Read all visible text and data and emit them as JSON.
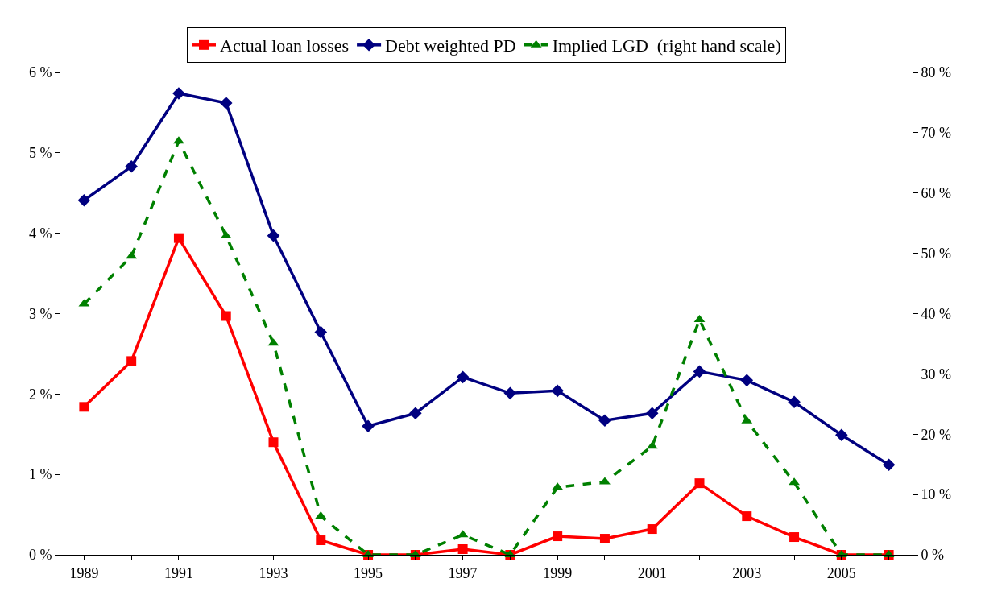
{
  "chart_data": {
    "type": "line",
    "x": [
      1989,
      1990,
      1991,
      1992,
      1993,
      1994,
      1995,
      1996,
      1997,
      1998,
      1999,
      2000,
      2001,
      2002,
      2003,
      2004,
      2005,
      2006
    ],
    "series": [
      {
        "name": "Actual loan losses",
        "color": "#ff0000",
        "marker": "square",
        "line_style": "solid",
        "values": [
          1.84,
          2.41,
          3.94,
          2.97,
          1.4,
          0.18,
          0,
          0,
          0.07,
          0,
          0.23,
          0.2,
          0.32,
          0.89,
          0.48,
          0.22,
          0,
          0
        ]
      },
      {
        "name": "Debt weighted PD",
        "color": "#000080",
        "marker": "diamond",
        "line_style": "solid",
        "values": [
          4.41,
          4.83,
          5.74,
          5.62,
          3.97,
          2.77,
          1.6,
          1.76,
          2.21,
          2.01,
          2.04,
          1.67,
          1.76,
          2.28,
          2.17,
          1.9,
          1.49,
          1.12
        ]
      },
      {
        "name": "Implied LGD  (right hand scale)",
        "color": "#008000",
        "marker": "triangle",
        "line_style": "dashed",
        "axis": "y2",
        "values": [
          41.6,
          49.5,
          68.6,
          52.9,
          35.1,
          6.4,
          0,
          0,
          3.3,
          0,
          11.2,
          12.1,
          18.0,
          39.0,
          22.2,
          12.0,
          0,
          0
        ]
      }
    ],
    "xlim": [
      1988.5,
      2006.5
    ],
    "xticks": [
      1989,
      {
        "value": 1990,
        "label": null
      },
      1991,
      {
        "value": 1992,
        "label": null
      },
      1993,
      {
        "value": 1994,
        "label": null
      },
      1995,
      {
        "value": 1996,
        "label": null
      },
      1997,
      {
        "value": 1998,
        "label": null
      },
      1999,
      {
        "value": 2000,
        "label": null
      },
      2001,
      {
        "value": 2002,
        "label": null
      },
      2003,
      {
        "value": 2004,
        "label": null
      },
      2005,
      {
        "value": 2006,
        "label": null
      }
    ],
    "ylim": [
      0,
      6
    ],
    "yticks": [
      {
        "value": 0,
        "label": "0 %"
      },
      {
        "value": 1,
        "label": "1 %"
      },
      {
        "value": 2,
        "label": "2 %"
      },
      {
        "value": 3,
        "label": "3 %"
      },
      {
        "value": 4,
        "label": "4 %"
      },
      {
        "value": 5,
        "label": "5 %"
      },
      {
        "value": 6,
        "label": "6 %"
      }
    ],
    "y2lim": [
      0,
      80
    ],
    "y2ticks": [
      {
        "value": 0,
        "label": "0 %"
      },
      {
        "value": 10,
        "label": "10 %"
      },
      {
        "value": 20,
        "label": "20 %"
      },
      {
        "value": 30,
        "label": "30 %"
      },
      {
        "value": 40,
        "label": "40 %"
      },
      {
        "value": 50,
        "label": "50 %"
      },
      {
        "value": 60,
        "label": "60 %"
      },
      {
        "value": 70,
        "label": "70 %"
      },
      {
        "value": 80,
        "label": "80 %"
      }
    ],
    "legend": "top"
  }
}
